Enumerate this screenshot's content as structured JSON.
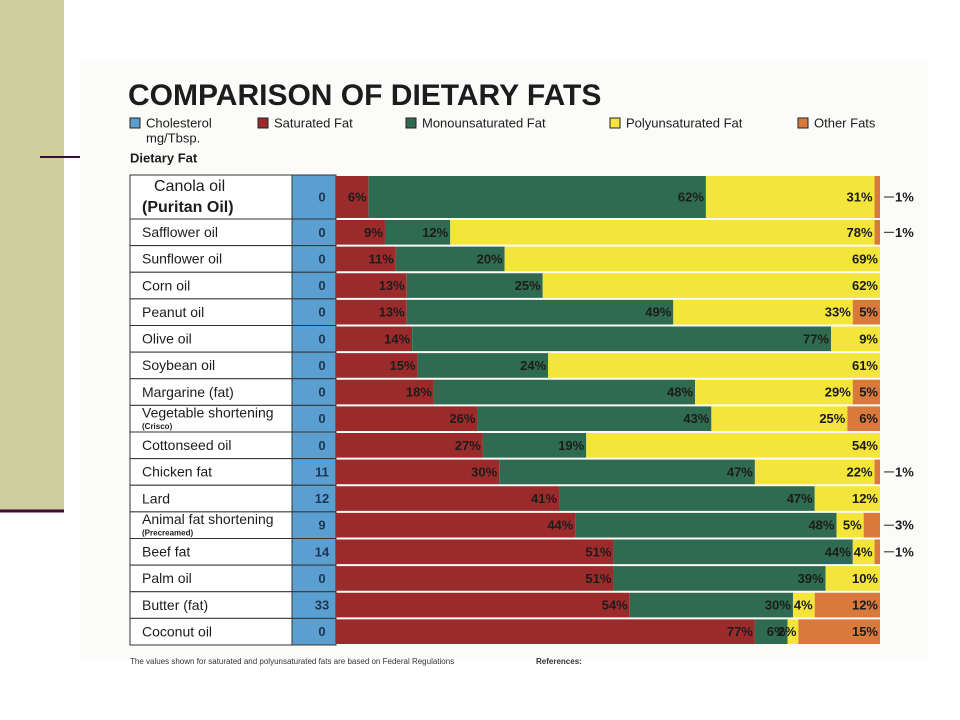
{
  "chart_data": {
    "type": "bar",
    "orientation": "horizontal",
    "stacked": true,
    "title": "COMPARISON OF DIETARY FATS",
    "row_header": "Dietary Fat",
    "footnote": "The values shown for saturated and polyunsaturated fats are based on Federal Regulations",
    "references": "References:",
    "xlim": [
      0,
      100
    ],
    "categories": [
      "Canola oil",
      "Safflower oil",
      "Sunflower oil",
      "Corn oil",
      "Peanut oil",
      "Olive oil",
      "Soybean oil",
      "Margarine (fat)",
      "Vegetable shortening",
      "Cottonseed oil",
      "Chicken fat",
      "Lard",
      "Animal fat shortening",
      "Beef fat",
      "Palm oil",
      "Butter (fat)",
      "Coconut oil"
    ],
    "category_notes": [
      "(Puritan Oil)",
      null,
      null,
      null,
      null,
      null,
      null,
      null,
      "(Crisco)",
      null,
      null,
      null,
      "(Precreamed)",
      null,
      null,
      null,
      null
    ],
    "cholesterol": {
      "name": "Cholesterol",
      "unit": "mg/Tbsp.",
      "color": "#5b9fd0",
      "values": [
        0,
        0,
        0,
        0,
        0,
        0,
        0,
        0,
        0,
        0,
        11,
        12,
        9,
        14,
        0,
        33,
        0
      ]
    },
    "series": [
      {
        "name": "Saturated Fat",
        "color": "#9b2b2b",
        "values": [
          6,
          9,
          11,
          13,
          13,
          14,
          15,
          18,
          26,
          27,
          30,
          41,
          44,
          51,
          51,
          54,
          77
        ],
        "value_labels": [
          "6%",
          "9%",
          "11%",
          "13%",
          "13%",
          "14%",
          "15%",
          "18%",
          "26%",
          "27%",
          "30%",
          "41%",
          "44%",
          "51%",
          "51%",
          "54%",
          "77%"
        ]
      },
      {
        "name": "Monounsaturated Fat",
        "color": "#2f6b50",
        "values": [
          62,
          12,
          20,
          25,
          49,
          77,
          24,
          48,
          43,
          19,
          47,
          47,
          48,
          44,
          39,
          30,
          6
        ],
        "value_labels": [
          "62%",
          "12%",
          "20%",
          "25%",
          "49%",
          "77%",
          "24%",
          "48%",
          "43%",
          "19%",
          "47%",
          "47%",
          "48%",
          "44%",
          "39%",
          "30%",
          "6%"
        ]
      },
      {
        "name": "Polyunsaturated Fat",
        "color": "#f3e53a",
        "values": [
          31,
          78,
          69,
          62,
          33,
          9,
          61,
          29,
          25,
          54,
          22,
          12,
          5,
          4,
          10,
          4,
          2
        ],
        "value_labels": [
          "31%",
          "78%",
          "69%",
          "62%",
          "33%",
          "9%",
          "61%",
          "29%",
          "25%",
          "54%",
          "22%",
          "12%",
          "5%",
          "4%",
          "10%",
          "4%",
          "2%"
        ]
      },
      {
        "name": "Other Fats",
        "color": "#d9793b",
        "values": [
          1,
          1,
          null,
          null,
          5,
          null,
          null,
          5,
          6,
          null,
          1,
          null,
          3,
          1,
          null,
          12,
          15
        ],
        "value_labels": [
          "1%",
          "1%",
          null,
          null,
          "5%",
          null,
          null,
          "5%",
          "6%",
          null,
          "1%",
          null,
          "3%",
          "1%",
          null,
          "12%",
          "15%"
        ]
      }
    ]
  }
}
